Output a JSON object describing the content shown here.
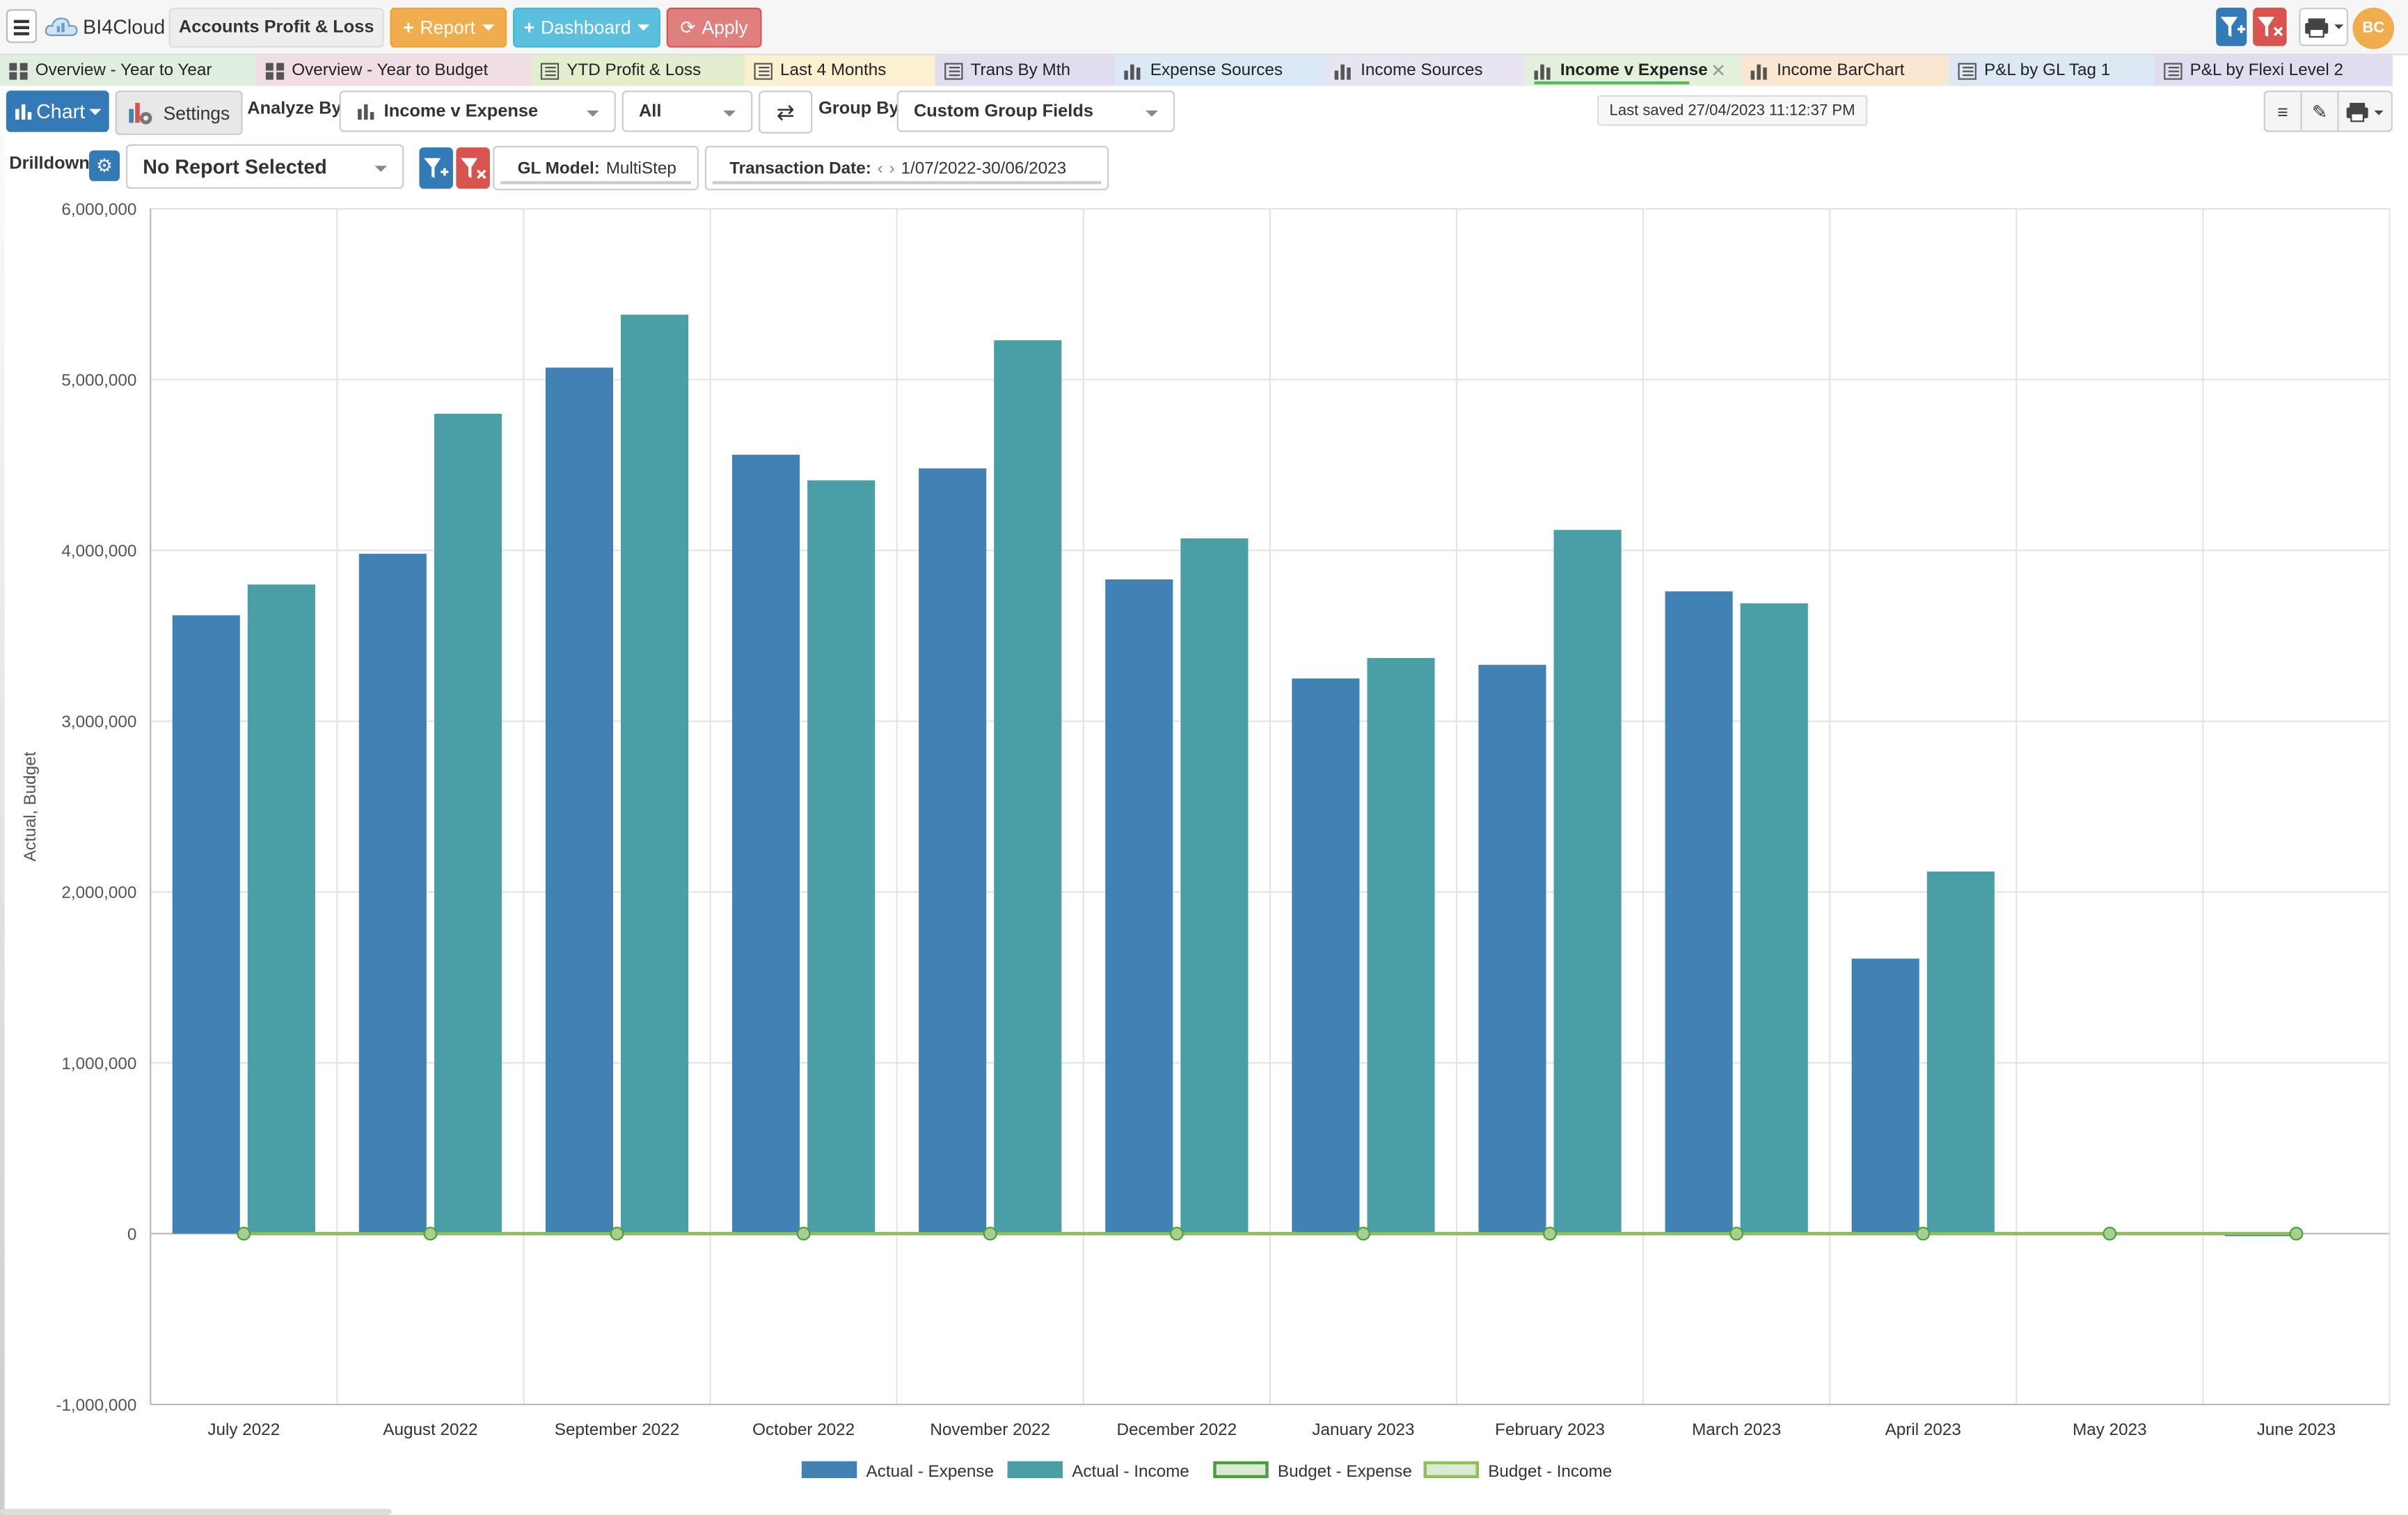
{
  "app": {
    "name": "BI4Cloud",
    "report_title": "Accounts Profit & Loss"
  },
  "toolbar": {
    "report_label": "Report",
    "dashboard_label": "Dashboard",
    "apply_label": "Apply",
    "avatar_initials": "BC"
  },
  "tabs": [
    {
      "label": "Overview - Year to Year",
      "icon": "dashboard-icon",
      "bg": "#dfeedf"
    },
    {
      "label": "Overview - Year to Budget",
      "icon": "dashboard-icon",
      "bg": "#f1dde4"
    },
    {
      "label": "YTD Profit & Loss",
      "icon": "table-icon",
      "bg": "#e2eecd"
    },
    {
      "label": "Last 4 Months",
      "icon": "table-icon",
      "bg": "#fbf0cf"
    },
    {
      "label": "Trans By Mth",
      "icon": "table-icon",
      "bg": "#e1dcee"
    },
    {
      "label": "Expense Sources",
      "icon": "bar-chart-icon",
      "bg": "#dae9f5"
    },
    {
      "label": "Income Sources",
      "icon": "bar-chart-icon",
      "bg": "#e8e4f2"
    },
    {
      "label": "Income v Expense",
      "icon": "bar-chart-icon",
      "bg": "#e3f1dc",
      "active": true
    },
    {
      "label": "Income BarChart",
      "icon": "bar-chart-icon",
      "bg": "#fbe6d2"
    },
    {
      "label": "P&L by GL Tag 1",
      "icon": "table-icon",
      "bg": "#dde8f5"
    },
    {
      "label": "P&L by Flexi Level 2",
      "icon": "table-icon",
      "bg": "#e2dcf0"
    }
  ],
  "controls": {
    "chart_label": "Chart",
    "settings_label": "Settings",
    "analyze_by_label": "Analyze By",
    "analyze_by_value": "Income v Expense",
    "filter_value": "All",
    "group_by_label": "Group By",
    "group_by_value": "Custom Group Fields",
    "last_saved": "Last saved 27/04/2023 11:12:37 PM",
    "drilldown_label": "Drilldown",
    "drilldown_value": "No Report Selected",
    "gl_model_label": "GL Model:",
    "gl_model_value": "MultiStep",
    "transaction_date_label": "Transaction Date:",
    "transaction_date_value": "1/07/2022-30/06/2023"
  },
  "chart_data": {
    "type": "bar",
    "ylabel": "Actual, Budget",
    "ylim": [
      -1000000,
      6000000
    ],
    "yticks": [
      -1000000,
      0,
      1000000,
      2000000,
      3000000,
      4000000,
      5000000,
      6000000
    ],
    "ytick_labels": [
      "-1,000,000",
      "0",
      "1,000,000",
      "2,000,000",
      "3,000,000",
      "4,000,000",
      "5,000,000",
      "6,000,000"
    ],
    "categories": [
      "July 2022",
      "August 2022",
      "September 2022",
      "October 2022",
      "November 2022",
      "December 2022",
      "January 2023",
      "February 2023",
      "March 2023",
      "April 2023",
      "May 2023",
      "June 2023"
    ],
    "series": [
      {
        "name": "Actual - Expense",
        "kind": "bar",
        "color": "#4181b3",
        "values": [
          3620000,
          3980000,
          5070000,
          4560000,
          4480000,
          3830000,
          3250000,
          3330000,
          3760000,
          1610000,
          0,
          -15000
        ]
      },
      {
        "name": "Actual - Income",
        "kind": "bar",
        "color": "#4a9fa6",
        "values": [
          3800000,
          4800000,
          5380000,
          4410000,
          5230000,
          4070000,
          3370000,
          4120000,
          3690000,
          2120000,
          0,
          0
        ]
      },
      {
        "name": "Budget - Expense",
        "kind": "line",
        "color": "#4a9e3d",
        "values": [
          0,
          0,
          0,
          0,
          0,
          0,
          0,
          0,
          0,
          0,
          0,
          0
        ]
      },
      {
        "name": "Budget - Income",
        "kind": "line",
        "color": "#8fbf5a",
        "values": [
          0,
          0,
          0,
          0,
          0,
          0,
          0,
          0,
          0,
          0,
          0,
          0
        ]
      }
    ],
    "legend_position": "bottom-center",
    "grid": true
  }
}
